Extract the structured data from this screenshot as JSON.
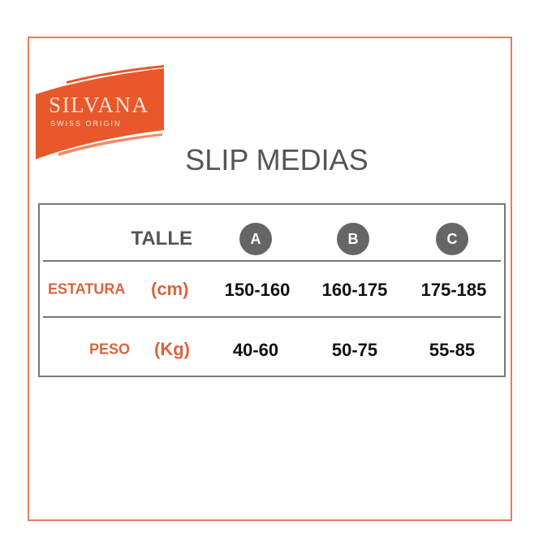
{
  "brand": {
    "name": "SILVANA",
    "tagline": "SWISS ORIGIN",
    "color": "#e8582a"
  },
  "title": "SLIP MEDIAS",
  "table": {
    "header_label": "TALLE",
    "sizes": [
      "A",
      "B",
      "C"
    ],
    "rows": [
      {
        "label": "ESTATURA",
        "unit": "(cm)",
        "values": [
          "150-160",
          "160-175",
          "175-185"
        ]
      },
      {
        "label": "PESO",
        "unit": "(Kg)",
        "values": [
          "40-60",
          "50-75",
          "55-85"
        ]
      }
    ]
  },
  "colors": {
    "accent": "#d9643f",
    "circle": "#666666",
    "border": "#e0805f"
  }
}
